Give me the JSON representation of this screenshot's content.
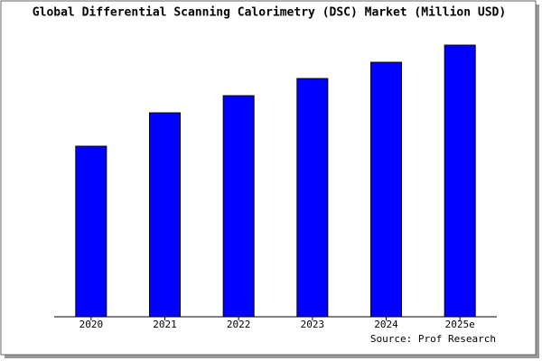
{
  "chart_data": {
    "type": "bar",
    "title": "Global Differential Scanning Calorimetry (DSC) Market (Million USD)",
    "categories": [
      "2020",
      "2021",
      "2022",
      "2023",
      "2024",
      "2025e"
    ],
    "values": [
      189,
      226,
      245,
      264,
      282,
      301
    ],
    "color": "#0000ff",
    "ylim": [
      0,
      303
    ],
    "source": "Source: Prof Research"
  }
}
